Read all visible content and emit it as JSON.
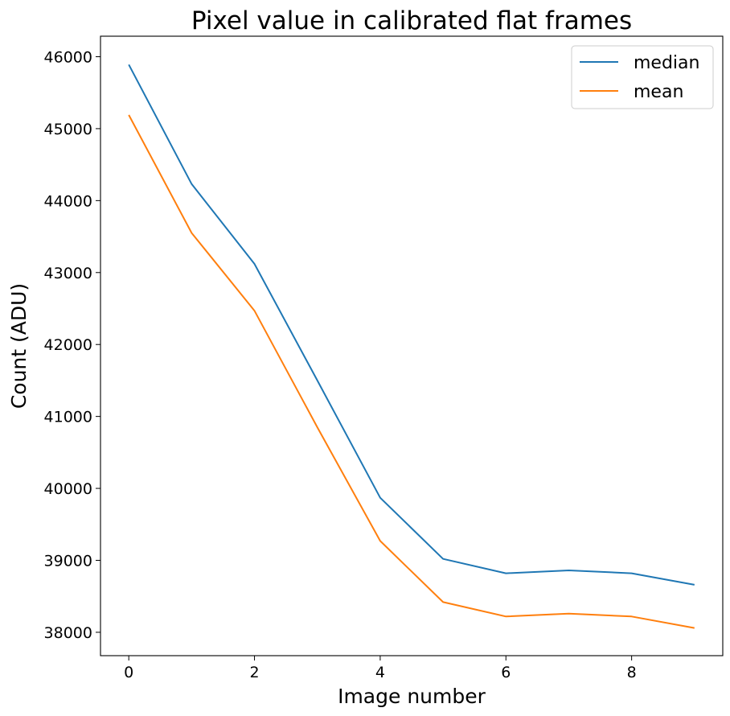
{
  "chart_data": {
    "type": "line",
    "title": "Pixel value in calibrated flat frames",
    "xlabel": "Image number",
    "ylabel": "Count (ADU)",
    "x": [
      0,
      1,
      2,
      3,
      4,
      5,
      6,
      7,
      8,
      9
    ],
    "xlim": [
      -0.45,
      9.45
    ],
    "ylim": [
      37675,
      46285
    ],
    "xticks": [
      0,
      2,
      4,
      6,
      8
    ],
    "yticks": [
      38000,
      39000,
      40000,
      41000,
      42000,
      43000,
      44000,
      45000,
      46000
    ],
    "grid": false,
    "legend_position": "top-right",
    "series": [
      {
        "name": "median",
        "color": "#1f77b4",
        "values": [
          45890,
          44230,
          43120,
          41500,
          39870,
          39020,
          38820,
          38860,
          38820,
          38660
        ]
      },
      {
        "name": "mean",
        "color": "#ff7f0e",
        "values": [
          45190,
          43550,
          42470,
          40850,
          39270,
          38420,
          38220,
          38260,
          38220,
          38060
        ]
      }
    ]
  }
}
